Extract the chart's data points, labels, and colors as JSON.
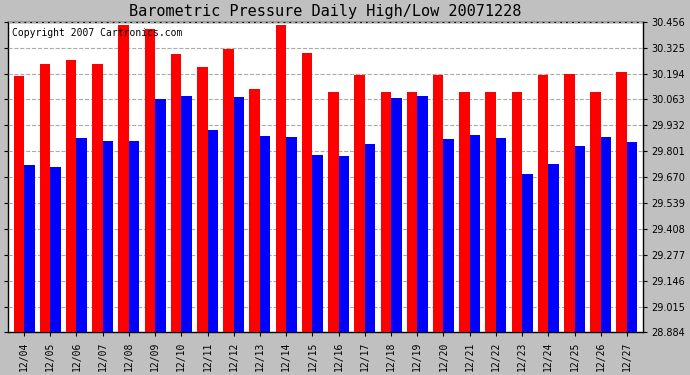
{
  "title": "Barometric Pressure Daily High/Low 20071228",
  "copyright": "Copyright 2007 Cartronics.com",
  "dates": [
    "12/04",
    "12/05",
    "12/06",
    "12/07",
    "12/08",
    "12/09",
    "12/10",
    "12/11",
    "12/12",
    "12/13",
    "12/14",
    "12/15",
    "12/16",
    "12/17",
    "12/18",
    "12/19",
    "12/20",
    "12/21",
    "12/22",
    "12/23",
    "12/24",
    "12/25",
    "12/26",
    "12/27"
  ],
  "highs": [
    30.18,
    30.24,
    30.26,
    30.24,
    30.44,
    30.42,
    30.295,
    30.225,
    30.32,
    30.115,
    30.44,
    30.3,
    30.1,
    30.185,
    30.1,
    30.1,
    30.185,
    30.1,
    30.1,
    30.1,
    30.185,
    30.19,
    30.1,
    30.2
  ],
  "lows": [
    29.73,
    29.72,
    29.87,
    29.855,
    29.855,
    30.065,
    30.08,
    29.91,
    30.075,
    29.88,
    29.875,
    29.78,
    29.775,
    29.835,
    30.07,
    30.08,
    29.865,
    29.885,
    29.87,
    29.685,
    29.735,
    29.825,
    29.875,
    29.845
  ],
  "ymin": 28.884,
  "ymax": 30.456,
  "yticks": [
    30.456,
    30.325,
    30.194,
    30.063,
    29.932,
    29.801,
    29.67,
    29.539,
    29.408,
    29.277,
    29.146,
    29.015,
    28.884
  ],
  "high_color": "#FF0000",
  "low_color": "#0000FF",
  "bg_color": "#C0C0C0",
  "plot_bg_color": "#FFFFFF",
  "grid_color": "#AAAAAA",
  "title_fontsize": 11,
  "copyright_fontsize": 7,
  "tick_fontsize": 7,
  "dpi": 100,
  "fig_width": 6.9,
  "fig_height": 3.75
}
